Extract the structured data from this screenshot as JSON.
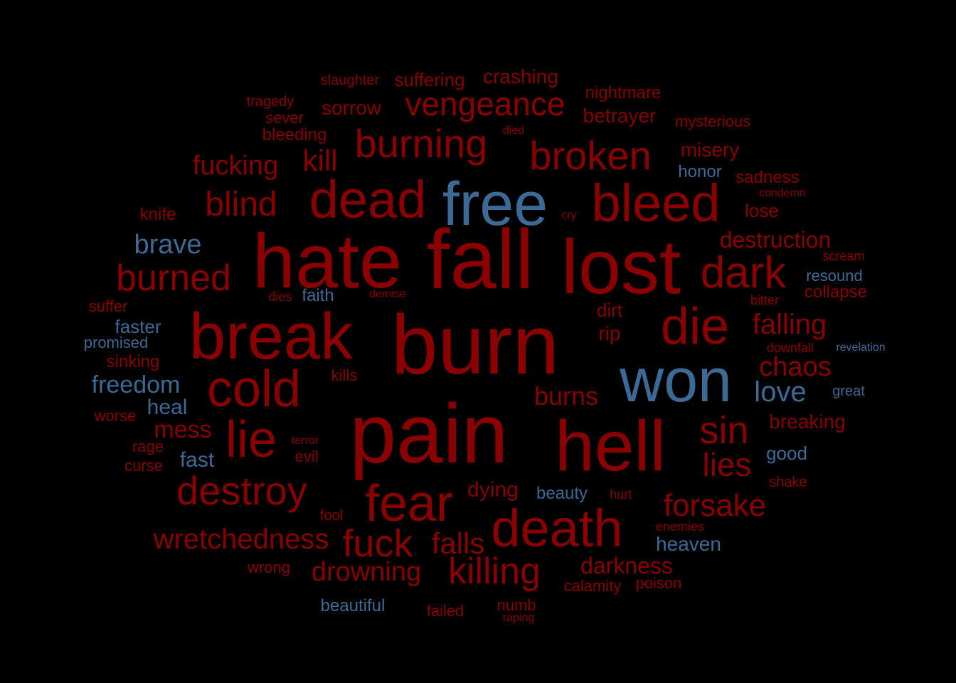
{
  "colors": {
    "negative": "#8b0000",
    "positive": "#3b6a96",
    "background": "#000000"
  },
  "words": [
    {
      "text": "burn",
      "sentiment": "negative"
    },
    {
      "text": "pain",
      "sentiment": "negative"
    },
    {
      "text": "fall",
      "sentiment": "negative"
    },
    {
      "text": "hate",
      "sentiment": "negative"
    },
    {
      "text": "lost",
      "sentiment": "negative"
    },
    {
      "text": "hell",
      "sentiment": "negative"
    },
    {
      "text": "break",
      "sentiment": "negative"
    },
    {
      "text": "won",
      "sentiment": "positive"
    },
    {
      "text": "free",
      "sentiment": "positive"
    },
    {
      "text": "death",
      "sentiment": "negative"
    },
    {
      "text": "dead",
      "sentiment": "negative"
    },
    {
      "text": "bleed",
      "sentiment": "negative"
    },
    {
      "text": "fear",
      "sentiment": "negative"
    },
    {
      "text": "die",
      "sentiment": "negative"
    },
    {
      "text": "cold",
      "sentiment": "negative"
    },
    {
      "text": "lie",
      "sentiment": "negative"
    },
    {
      "text": "dark",
      "sentiment": "negative"
    },
    {
      "text": "destroy",
      "sentiment": "negative"
    },
    {
      "text": "burning",
      "sentiment": "negative"
    },
    {
      "text": "broken",
      "sentiment": "negative"
    },
    {
      "text": "fuck",
      "sentiment": "negative"
    },
    {
      "text": "killing",
      "sentiment": "negative"
    },
    {
      "text": "sin",
      "sentiment": "negative"
    },
    {
      "text": "burned",
      "sentiment": "negative"
    },
    {
      "text": "vengeance",
      "sentiment": "negative"
    },
    {
      "text": "forsake",
      "sentiment": "negative"
    },
    {
      "text": "lies",
      "sentiment": "negative"
    },
    {
      "text": "blind",
      "sentiment": "negative"
    },
    {
      "text": "wretchedness",
      "sentiment": "negative"
    },
    {
      "text": "falls",
      "sentiment": "negative"
    },
    {
      "text": "kill",
      "sentiment": "negative"
    },
    {
      "text": "drowning",
      "sentiment": "negative"
    },
    {
      "text": "love",
      "sentiment": "positive"
    },
    {
      "text": "chaos",
      "sentiment": "negative"
    },
    {
      "text": "falling",
      "sentiment": "negative"
    },
    {
      "text": "burns",
      "sentiment": "negative"
    },
    {
      "text": "fucking",
      "sentiment": "negative"
    },
    {
      "text": "brave",
      "sentiment": "positive"
    },
    {
      "text": "freedom",
      "sentiment": "positive"
    },
    {
      "text": "mess",
      "sentiment": "negative"
    },
    {
      "text": "destruction",
      "sentiment": "negative"
    },
    {
      "text": "darkness",
      "sentiment": "negative"
    },
    {
      "text": "dying",
      "sentiment": "negative"
    },
    {
      "text": "crashing",
      "sentiment": "negative"
    },
    {
      "text": "heal",
      "sentiment": "positive"
    },
    {
      "text": "fast",
      "sentiment": "positive"
    },
    {
      "text": "heaven",
      "sentiment": "positive"
    },
    {
      "text": "breaking",
      "sentiment": "negative"
    },
    {
      "text": "misery",
      "sentiment": "negative"
    },
    {
      "text": "sorrow",
      "sentiment": "negative"
    },
    {
      "text": "betrayer",
      "sentiment": "negative"
    },
    {
      "text": "suffering",
      "sentiment": "negative"
    },
    {
      "text": "good",
      "sentiment": "positive"
    },
    {
      "text": "lose",
      "sentiment": "negative"
    },
    {
      "text": "faster",
      "sentiment": "positive"
    },
    {
      "text": "beauty",
      "sentiment": "positive"
    },
    {
      "text": "beautiful",
      "sentiment": "positive"
    },
    {
      "text": "faith",
      "sentiment": "positive"
    },
    {
      "text": "rip",
      "sentiment": "negative"
    },
    {
      "text": "dirt",
      "sentiment": "negative"
    },
    {
      "text": "sadness",
      "sentiment": "negative"
    },
    {
      "text": "nightmare",
      "sentiment": "negative"
    },
    {
      "text": "honor",
      "sentiment": "positive"
    },
    {
      "text": "collapse",
      "sentiment": "negative"
    },
    {
      "text": "bleeding",
      "sentiment": "negative"
    },
    {
      "text": "calamity",
      "sentiment": "negative"
    },
    {
      "text": "failed",
      "sentiment": "negative"
    },
    {
      "text": "numb",
      "sentiment": "negative"
    },
    {
      "text": "kills",
      "sentiment": "negative"
    },
    {
      "text": "sinking",
      "sentiment": "negative"
    },
    {
      "text": "poison",
      "sentiment": "negative"
    },
    {
      "text": "wrong",
      "sentiment": "negative"
    },
    {
      "text": "mysterious",
      "sentiment": "negative"
    },
    {
      "text": "sever",
      "sentiment": "negative"
    },
    {
      "text": "knife",
      "sentiment": "negative"
    },
    {
      "text": "promised",
      "sentiment": "positive"
    },
    {
      "text": "resound",
      "sentiment": "positive"
    },
    {
      "text": "great",
      "sentiment": "positive"
    },
    {
      "text": "slaughter",
      "sentiment": "negative"
    },
    {
      "text": "tragedy",
      "sentiment": "negative"
    },
    {
      "text": "suffer",
      "sentiment": "negative"
    },
    {
      "text": "worse",
      "sentiment": "negative"
    },
    {
      "text": "rage",
      "sentiment": "negative"
    },
    {
      "text": "curse",
      "sentiment": "negative"
    },
    {
      "text": "evil",
      "sentiment": "negative"
    },
    {
      "text": "fool",
      "sentiment": "negative"
    },
    {
      "text": "hurt",
      "sentiment": "negative"
    },
    {
      "text": "enemies",
      "sentiment": "negative"
    },
    {
      "text": "shake",
      "sentiment": "negative"
    },
    {
      "text": "downfall",
      "sentiment": "negative"
    },
    {
      "text": "bitter",
      "sentiment": "negative"
    },
    {
      "text": "scream",
      "sentiment": "negative"
    },
    {
      "text": "dies",
      "sentiment": "negative"
    },
    {
      "text": "revelation",
      "sentiment": "positive"
    },
    {
      "text": "demise",
      "sentiment": "negative"
    },
    {
      "text": "condemn",
      "sentiment": "negative"
    },
    {
      "text": "terror",
      "sentiment": "negative"
    },
    {
      "text": "cry",
      "sentiment": "negative"
    },
    {
      "text": "died",
      "sentiment": "negative"
    },
    {
      "text": "raping",
      "sentiment": "negative"
    }
  ]
}
